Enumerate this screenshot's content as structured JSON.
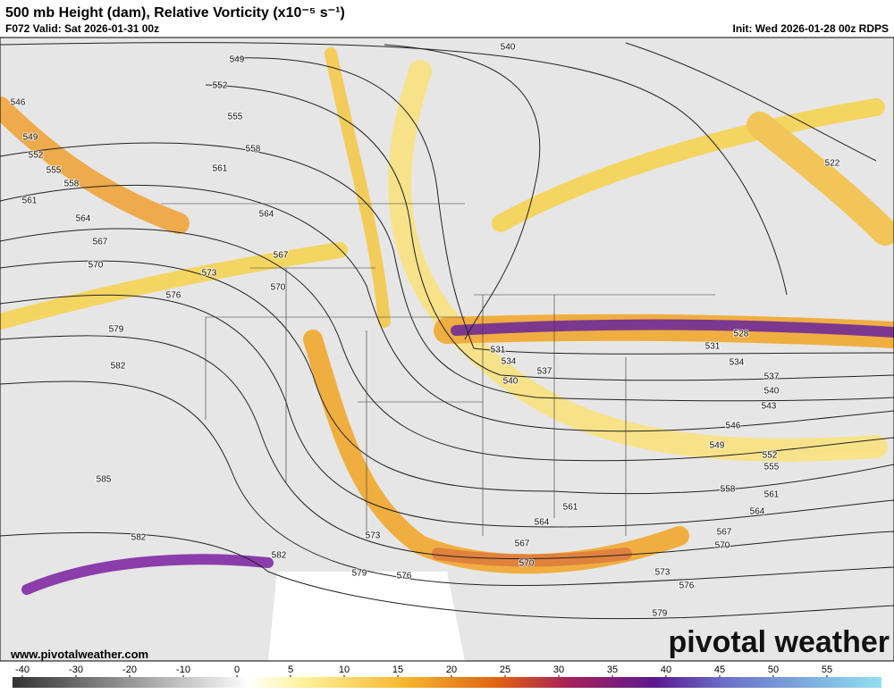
{
  "header": {
    "title": "500 mb Height (dam), Relative Vorticity (x10⁻⁵ s⁻¹)",
    "valid": "F072 Valid: Sat 2026-01-31 00z",
    "init": "Init: Wed 2026-01-28 00z RDPS"
  },
  "contour_labels": [
    540,
    549,
    552,
    546,
    555,
    549,
    558,
    552,
    561,
    555,
    558,
    561,
    564,
    564,
    567,
    567,
    570,
    573,
    570,
    576,
    579,
    582,
    585,
    582,
    582,
    579,
    576,
    573,
    531,
    534,
    537,
    540,
    531,
    528,
    534,
    537,
    540,
    543,
    546,
    549,
    552,
    555,
    558,
    561,
    564,
    567,
    570,
    564,
    561,
    567,
    570,
    573,
    576,
    579,
    522
  ],
  "footer": {
    "website": "www.pivotalweather.com",
    "logo": "pivotal weather"
  },
  "colorbar": {
    "ticks": [
      -40,
      -30,
      -20,
      -10,
      0,
      5,
      10,
      15,
      20,
      25,
      30,
      35,
      40,
      45,
      50,
      55
    ]
  }
}
